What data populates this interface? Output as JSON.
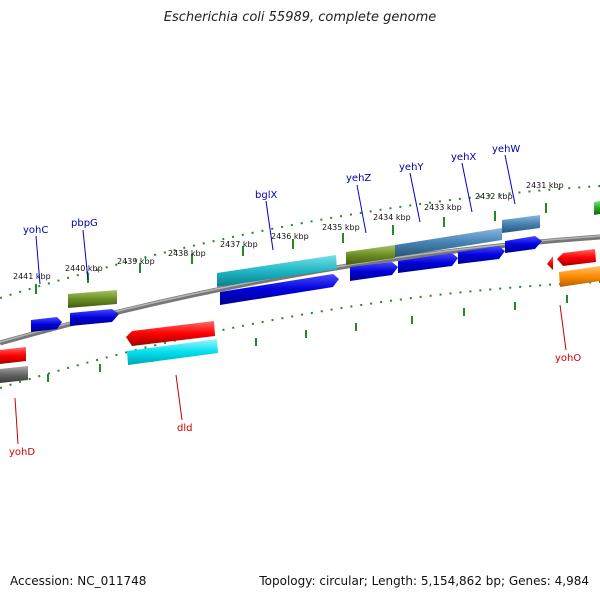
{
  "title": "Escherichia coli 55989, complete genome",
  "footer": {
    "accession": "Accession: NC_011748",
    "topology": "Topology: circular; Length: 5,154,862 bp; Genes: 4,984"
  },
  "scale_labels": [
    "2441 kbp",
    "2440 kbp",
    "2439 kbp",
    "2438 kbp",
    "2437 kbp",
    "2436 kbp",
    "2435 kbp",
    "2434 kbp",
    "2433 kbp",
    "2432 kbp",
    "2431 kbp"
  ],
  "gene_labels": {
    "plus": [
      "yohC",
      "pbpG",
      "bglX",
      "yehZ",
      "yehY",
      "yehX",
      "yehW"
    ],
    "minus": [
      "dld",
      "yohD",
      "yohO"
    ]
  },
  "colors": {
    "forward_strand": "#0000dd",
    "reverse_strand": "#ff0000",
    "cyan_feature": "#00c8d8",
    "olive_feature": "#6b8e23",
    "steel_feature": "#4682b4",
    "grey_feature": "#666666",
    "green_feature": "#22aa22",
    "orange_feature": "#ff8c00",
    "backbone": "#888888",
    "tick": "#228b22",
    "plus_label": "#0000aa",
    "minus_label": "#cc0000"
  }
}
